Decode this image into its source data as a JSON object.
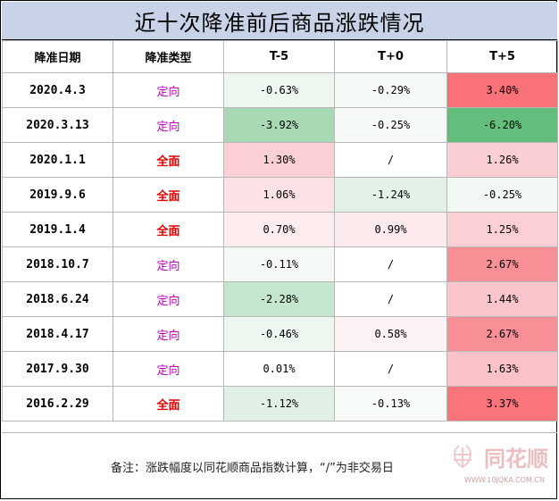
{
  "title": "近十次降准前后商品涨跌情况",
  "headers": [
    "降准日期",
    "降准类型",
    "T-5",
    "T+0",
    "T+5"
  ],
  "rows": [
    {
      "date": "2020.4.3",
      "type": "定向",
      "t_5": "-0.63%",
      "t0": "-0.29%",
      "t5": "3.40%"
    },
    {
      "date": "2020.3.13",
      "type": "定向",
      "t_5": "-3.92%",
      "t0": "-0.25%",
      "t5": "-6.20%"
    },
    {
      "date": "2020.1.1",
      "type": "全面",
      "t_5": "1.30%",
      "t0": "/",
      "t5": "1.26%"
    },
    {
      "date": "2019.9.6",
      "type": "全面",
      "t_5": "1.06%",
      "t0": "-1.24%",
      "t5": "-0.25%"
    },
    {
      "date": "2019.1.4",
      "type": "全面",
      "t_5": "0.70%",
      "t0": "0.99%",
      "t5": "1.25%"
    },
    {
      "date": "2018.10.7",
      "type": "定向",
      "t_5": "-0.11%",
      "t0": "/",
      "t5": "2.67%"
    },
    {
      "date": "2018.6.24",
      "type": "定向",
      "t_5": "-2.28%",
      "t0": "/",
      "t5": "1.44%"
    },
    {
      "date": "2018.4.17",
      "type": "定向",
      "t_5": "-0.46%",
      "t0": "0.58%",
      "t5": "2.67%"
    },
    {
      "date": "2017.9.30",
      "type": "定向",
      "t_5": "0.01%",
      "t0": "/",
      "t5": "1.63%"
    },
    {
      "date": "2016.2.29",
      "type": "全面",
      "t_5": "-1.12%",
      "t0": "-0.13%",
      "t5": "3.37%"
    }
  ],
  "colors": {
    "t_5": [
      "#eef6f0",
      "#a7d9b4",
      "#fbcfd4",
      "#fde2e5",
      "#fdeced",
      "#f4f9f5",
      "#c4e6cd",
      "#eef6f0",
      "#ffffff",
      "#e0f0e4"
    ],
    "t0": [
      "#f6faf7",
      "#f6faf7",
      "#ffffff",
      "#e3f2e7",
      "#fdeaec",
      "#ffffff",
      "#ffffff",
      "#fdf2f3",
      "#ffffff",
      "#f7fbf8"
    ],
    "t5": [
      "#f9727a",
      "#63be7b",
      "#fbced3",
      "#f2f9f4",
      "#fbcfd4",
      "#f98f96",
      "#fbc6cb",
      "#f98f96",
      "#fbc2c8",
      "#f9747b"
    ]
  },
  "note": "备注：涨跌幅度以同花顺商品指数计算，“/”为非交易日",
  "logo": {
    "text": "同花顺",
    "url": "WWW.10JQKA.COM.CN"
  }
}
